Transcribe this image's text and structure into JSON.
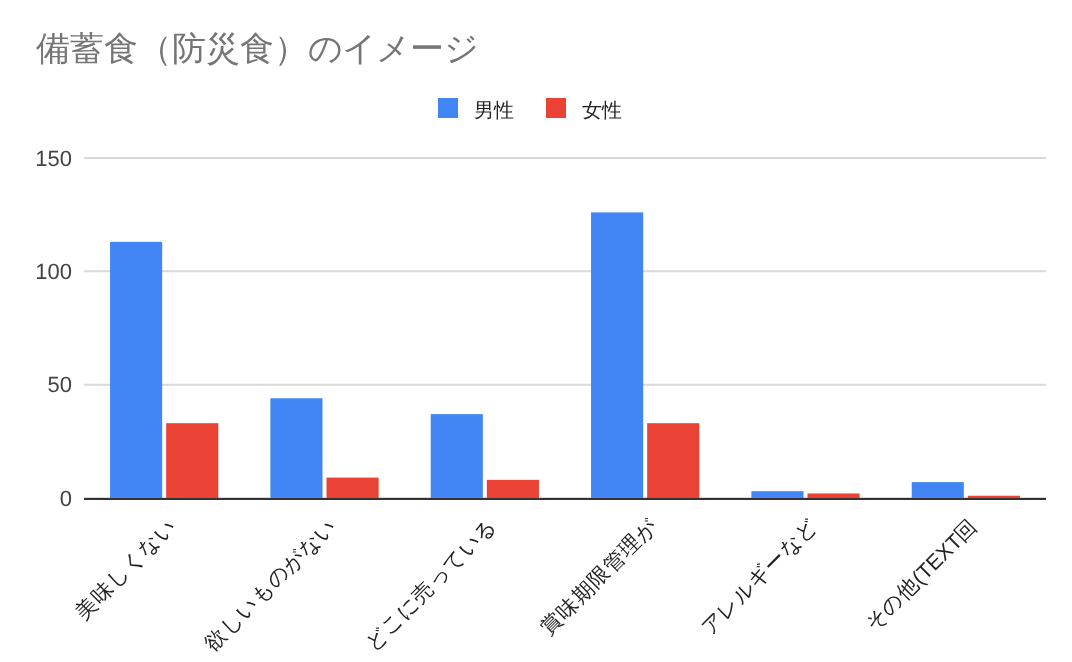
{
  "chart_data": {
    "type": "bar",
    "title": "備蓄食（防災食）のイメージ",
    "categories": [
      "美味しくない",
      "欲しいものがない",
      "どこに売っている",
      "賞味期限管理が",
      "アレルギーなど",
      "その他(TEXT回"
    ],
    "series": [
      {
        "name": "男性",
        "color": "#4285f4",
        "values": [
          113,
          44,
          37,
          126,
          3,
          7
        ]
      },
      {
        "name": "女性",
        "color": "#ea4335",
        "values": [
          33,
          9,
          8,
          33,
          2,
          1
        ]
      }
    ],
    "ylim": [
      0,
      150
    ],
    "yticks": [
      0,
      50,
      100,
      150
    ],
    "grid": "y",
    "legend": "top"
  }
}
